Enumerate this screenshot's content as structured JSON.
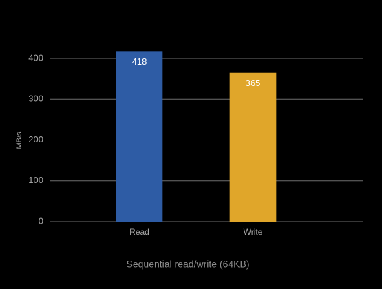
{
  "chart_data": {
    "type": "bar",
    "x_label": "Sequential read/write (64KB)",
    "y_label": "MB/s",
    "categories": [
      "Read",
      "Write"
    ],
    "values": [
      418,
      365
    ],
    "colors": [
      "#2e5ca5",
      "#e0a62a"
    ],
    "ylim": [
      0,
      400
    ],
    "yticks": [
      0,
      100,
      200,
      300,
      400
    ],
    "grid": true
  }
}
